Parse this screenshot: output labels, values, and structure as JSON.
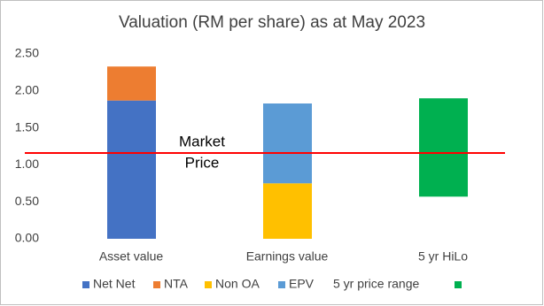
{
  "chart_data": {
    "type": "bar",
    "stacked": true,
    "title": "Valuation (RM per share) as at May 2023",
    "categories": [
      "Asset value",
      "Earnings value",
      "5 yr HiLo"
    ],
    "series": [
      {
        "name": "Net Net",
        "color": "#4472c4",
        "values": [
          1.87,
          null,
          null
        ]
      },
      {
        "name": "NTA",
        "color": "#ed7d31",
        "values": [
          0.46,
          null,
          null
        ]
      },
      {
        "name": "Non OA",
        "color": "#ffc000",
        "values": [
          null,
          0.75,
          null
        ]
      },
      {
        "name": "EPV",
        "color": "#5b9bd5",
        "values": [
          null,
          1.08,
          null
        ]
      },
      {
        "name": "5 yr price range",
        "values": [
          null,
          null,
          0.57
        ]
      },
      {
        "color": "#00b050",
        "values": [
          null,
          null,
          1.33
        ]
      }
    ],
    "ylim": [
      0,
      2.5
    ],
    "yticks": [
      {
        "value": 0,
        "label": "0.00"
      },
      {
        "value": 0.5,
        "label": "0.50"
      },
      {
        "value": 1,
        "label": "1.00"
      },
      {
        "value": 1.5,
        "label": "1.50"
      },
      {
        "value": 2,
        "label": "2.00"
      },
      {
        "value": 2.5,
        "label": "2.50"
      }
    ],
    "reference_line": {
      "value": 1.16,
      "color": "#ff0000",
      "label_lines": [
        "Market",
        "Price"
      ]
    },
    "legend": "bottom"
  }
}
